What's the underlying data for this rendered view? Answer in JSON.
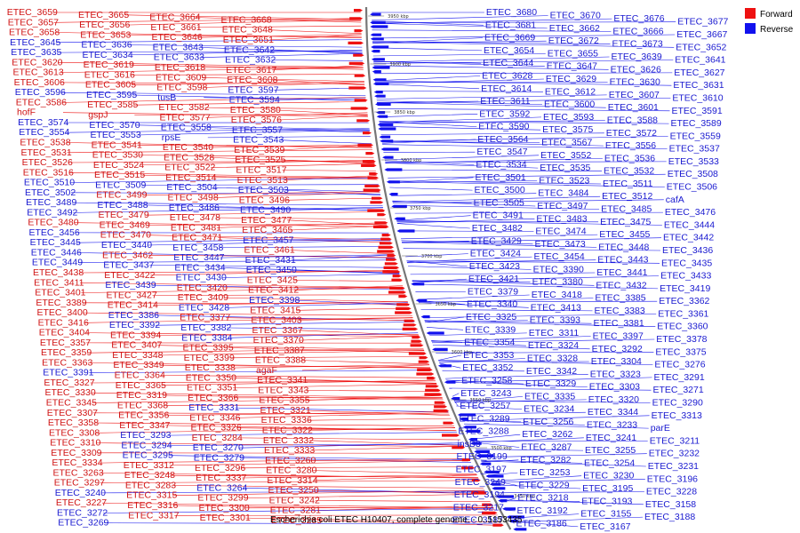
{
  "caption": "Escherichia coli ETEC H10407, complete genome. - 0..5153435",
  "legend": {
    "placement": "top-right",
    "items": [
      {
        "label": "Forward",
        "color": "#ee1111"
      },
      {
        "label": "Reverse",
        "color": "#1111ee"
      }
    ]
  },
  "colors": {
    "forward": "#ee1111",
    "forward_label": "#d01414",
    "reverse": "#1111ee",
    "reverse_label": "#1a1ad0",
    "backbone": "#777777"
  },
  "ticks": [
    "3950 kbp",
    "3900 kbp",
    "3850 kbp",
    "3800 kbp",
    "3750 kbp",
    "3700 kbp",
    "3650 kbp",
    "3600 kbp",
    "3550 kbp",
    "3500 kbp",
    "3450 kbp"
  ],
  "left_labels": [
    {
      "t": "ETEC_3659",
      "s": "f"
    },
    {
      "t": "ETEC_3665",
      "s": "f"
    },
    {
      "t": "ETEC_3664",
      "s": "f"
    },
    {
      "t": "ETEC_3668",
      "s": "f"
    },
    {
      "t": "ETEC_3657",
      "s": "f"
    },
    {
      "t": "ETEC_3656",
      "s": "f"
    },
    {
      "t": "ETEC_3661",
      "s": "f"
    },
    {
      "t": "ETEC_3648",
      "s": "f"
    },
    {
      "t": "ETEC_3658",
      "s": "f"
    },
    {
      "t": "ETEC_3653",
      "s": "f"
    },
    {
      "t": "ETEC_3646",
      "s": "f"
    },
    {
      "t": "ETEC_3651",
      "s": "f"
    },
    {
      "t": "ETEC_3645",
      "s": "r"
    },
    {
      "t": "ETEC_3636",
      "s": "r"
    },
    {
      "t": "ETEC_3643",
      "s": "r"
    },
    {
      "t": "ETEC_3642",
      "s": "r"
    },
    {
      "t": "ETEC_3635",
      "s": "r"
    },
    {
      "t": "ETEC_3634",
      "s": "r"
    },
    {
      "t": "ETEC_3633",
      "s": "r"
    },
    {
      "t": "ETEC_3632",
      "s": "r"
    },
    {
      "t": "ETEC_3620",
      "s": "f"
    },
    {
      "t": "ETEC_3619",
      "s": "f"
    },
    {
      "t": "ETEC_3618",
      "s": "f"
    },
    {
      "t": "ETEC_3617",
      "s": "f"
    },
    {
      "t": "ETEC_3613",
      "s": "f"
    },
    {
      "t": "ETEC_3616",
      "s": "f"
    },
    {
      "t": "ETEC_3609",
      "s": "f"
    },
    {
      "t": "ETEC_3608",
      "s": "f"
    },
    {
      "t": "ETEC_3606",
      "s": "f"
    },
    {
      "t": "ETEC_3605",
      "s": "f"
    },
    {
      "t": "ETEC_3598",
      "s": "f"
    },
    {
      "t": "ETEC_3597",
      "s": "r"
    },
    {
      "t": "ETEC_3596",
      "s": "r"
    },
    {
      "t": "ETEC_3595",
      "s": "r"
    },
    {
      "t": "tusB",
      "s": "r"
    },
    {
      "t": "ETEC_3594",
      "s": "r"
    },
    {
      "t": "ETEC_3586",
      "s": "f"
    },
    {
      "t": "ETEC_3585",
      "s": "f"
    },
    {
      "t": "ETEC_3582",
      "s": "f"
    },
    {
      "t": "ETEC_3580",
      "s": "f"
    },
    {
      "t": "hofF",
      "s": "f"
    },
    {
      "t": "gspJ",
      "s": "f"
    },
    {
      "t": "ETEC_3577",
      "s": "f"
    },
    {
      "t": "ETEC_3576",
      "s": "f"
    },
    {
      "t": "ETEC_3574",
      "s": "r"
    },
    {
      "t": "ETEC_3570",
      "s": "r"
    },
    {
      "t": "ETEC_3558",
      "s": "r"
    },
    {
      "t": "ETEC_3557",
      "s": "r"
    },
    {
      "t": "ETEC_3554",
      "s": "r"
    },
    {
      "t": "ETEC_3553",
      "s": "r"
    },
    {
      "t": "rpsE",
      "s": "r"
    },
    {
      "t": "ETEC_3543",
      "s": "r"
    },
    {
      "t": "ETEC_3538",
      "s": "f"
    },
    {
      "t": "ETEC_3541",
      "s": "f"
    },
    {
      "t": "ETEC_3540",
      "s": "f"
    },
    {
      "t": "ETEC_3539",
      "s": "f"
    },
    {
      "t": "ETEC_3531",
      "s": "f"
    },
    {
      "t": "ETEC_3530",
      "s": "f"
    },
    {
      "t": "ETEC_3528",
      "s": "f"
    },
    {
      "t": "ETEC_3525",
      "s": "f"
    },
    {
      "t": "ETEC_3526",
      "s": "f"
    },
    {
      "t": "ETEC_3524",
      "s": "f"
    },
    {
      "t": "ETEC_3522",
      "s": "f"
    },
    {
      "t": "ETEC_3517",
      "s": "f"
    },
    {
      "t": "ETEC_3516",
      "s": "f"
    },
    {
      "t": "ETEC_3515",
      "s": "f"
    },
    {
      "t": "ETEC_3514",
      "s": "f"
    },
    {
      "t": "ETEC_3513",
      "s": "f"
    },
    {
      "t": "ETEC_3510",
      "s": "r"
    },
    {
      "t": "ETEC_3509",
      "s": "r"
    },
    {
      "t": "ETEC_3504",
      "s": "r"
    },
    {
      "t": "ETEC_3503",
      "s": "r"
    },
    {
      "t": "ETEC_3502",
      "s": "r"
    },
    {
      "t": "ETEC_3499",
      "s": "f"
    },
    {
      "t": "ETEC_3498",
      "s": "f"
    },
    {
      "t": "ETEC_3496",
      "s": "f"
    },
    {
      "t": "ETEC_3489",
      "s": "r"
    },
    {
      "t": "ETEC_3488",
      "s": "r"
    },
    {
      "t": "ETEC_3486",
      "s": "r"
    },
    {
      "t": "ETEC_3490",
      "s": "r"
    },
    {
      "t": "ETEC_3492",
      "s": "r"
    },
    {
      "t": "ETEC_3479",
      "s": "f"
    },
    {
      "t": "ETEC_3478",
      "s": "f"
    },
    {
      "t": "ETEC_3477",
      "s": "f"
    },
    {
      "t": "ETEC_3480",
      "s": "f"
    },
    {
      "t": "ETEC_3469",
      "s": "f"
    },
    {
      "t": "ETEC_3481",
      "s": "f"
    },
    {
      "t": "ETEC_3465",
      "s": "f"
    },
    {
      "t": "ETEC_3456",
      "s": "r"
    },
    {
      "t": "ETEC_3470",
      "s": "f"
    },
    {
      "t": "ETEC_3471",
      "s": "f"
    },
    {
      "t": "ETEC_3457",
      "s": "r"
    },
    {
      "t": "ETEC_3445",
      "s": "r"
    },
    {
      "t": "ETEC_3440",
      "s": "r"
    },
    {
      "t": "ETEC_3458",
      "s": "r"
    },
    {
      "t": "ETEC_3461",
      "s": "f"
    },
    {
      "t": "ETEC_3446",
      "s": "r"
    },
    {
      "t": "ETEC_3462",
      "s": "f"
    },
    {
      "t": "ETEC_3447",
      "s": "r"
    },
    {
      "t": "ETEC_3431",
      "s": "r"
    },
    {
      "t": "ETEC_3449",
      "s": "r"
    },
    {
      "t": "ETEC_3437",
      "s": "r"
    },
    {
      "t": "ETEC_3434",
      "s": "r"
    },
    {
      "t": "ETEC_3450",
      "s": "r"
    },
    {
      "t": "ETEC_3438",
      "s": "f"
    },
    {
      "t": "ETEC_3422",
      "s": "f"
    },
    {
      "t": "ETEC_3430",
      "s": "r"
    },
    {
      "t": "ETEC_3425",
      "s": "f"
    },
    {
      "t": "ETEC_3411",
      "s": "f"
    },
    {
      "t": "ETEC_3439",
      "s": "r"
    },
    {
      "t": "ETEC_3420",
      "s": "f"
    },
    {
      "t": "ETEC_3412",
      "s": "f"
    },
    {
      "t": "ETEC_3401",
      "s": "f"
    },
    {
      "t": "ETEC_3427",
      "s": "f"
    },
    {
      "t": "ETEC_3409",
      "s": "f"
    },
    {
      "t": "ETEC_3398",
      "s": "r"
    },
    {
      "t": "ETEC_3389",
      "s": "f"
    },
    {
      "t": "ETEC_3414",
      "s": "f"
    },
    {
      "t": "ETEC_3428",
      "s": "r"
    },
    {
      "t": "ETEC_3415",
      "s": "f"
    },
    {
      "t": "ETEC_3400",
      "s": "f"
    },
    {
      "t": "ETEC_3386",
      "s": "r"
    },
    {
      "t": "ETEC_3377",
      "s": "f"
    },
    {
      "t": "ETEC_3403",
      "s": "f"
    },
    {
      "t": "ETEC_3416",
      "s": "f"
    },
    {
      "t": "ETEC_3392",
      "s": "r"
    },
    {
      "t": "ETEC_3382",
      "s": "r"
    },
    {
      "t": "ETEC_3367",
      "s": "f"
    },
    {
      "t": "ETEC_3404",
      "s": "f"
    },
    {
      "t": "ETEC_3394",
      "s": "f"
    },
    {
      "t": "ETEC_3384",
      "s": "r"
    },
    {
      "t": "ETEC_3370",
      "s": "f"
    },
    {
      "t": "ETEC_3357",
      "s": "f"
    },
    {
      "t": "ETEC_3407",
      "s": "f"
    },
    {
      "t": "ETEC_3395",
      "s": "f"
    },
    {
      "t": "ETEC_3387",
      "s": "f"
    },
    {
      "t": "ETEC_3359",
      "s": "f"
    },
    {
      "t": "ETEC_3348",
      "s": "f"
    },
    {
      "t": "ETEC_3399",
      "s": "f"
    },
    {
      "t": "ETEC_3388",
      "s": "f"
    },
    {
      "t": "ETEC_3363",
      "s": "f"
    },
    {
      "t": "ETEC_3349",
      "s": "f"
    },
    {
      "t": "ETEC_3338",
      "s": "f"
    },
    {
      "t": "agaF",
      "s": "f"
    },
    {
      "t": "ETEC_3391",
      "s": "r"
    },
    {
      "t": "ETEC_3364",
      "s": "f"
    },
    {
      "t": "ETEC_3350",
      "s": "f"
    },
    {
      "t": "ETEC_3341",
      "s": "f"
    },
    {
      "t": "ETEC_3327",
      "s": "f"
    },
    {
      "t": "ETEC_3365",
      "s": "f"
    },
    {
      "t": "ETEC_3351",
      "s": "f"
    },
    {
      "t": "ETEC_3343",
      "s": "f"
    },
    {
      "t": "ETEC_3330",
      "s": "f"
    },
    {
      "t": "ETEC_3319",
      "s": "f"
    },
    {
      "t": "ETEC_3366",
      "s": "f"
    },
    {
      "t": "ETEC_3355",
      "s": "f"
    },
    {
      "t": "ETEC_3345",
      "s": "f"
    },
    {
      "t": "ETEC_3368",
      "s": "f"
    },
    {
      "t": "ETEC_3331",
      "s": "r"
    },
    {
      "t": "ETEC_3321",
      "s": "f"
    },
    {
      "t": "ETEC_3307",
      "s": "f"
    },
    {
      "t": "ETEC_3356",
      "s": "f"
    },
    {
      "t": "ETEC_3346",
      "s": "f"
    },
    {
      "t": "ETEC_3336",
      "s": "f"
    },
    {
      "t": "ETEC_3358",
      "s": "f"
    },
    {
      "t": "ETEC_3347",
      "s": "f"
    },
    {
      "t": "ETEC_3326",
      "s": "f"
    },
    {
      "t": "ETEC_3322",
      "s": "f"
    },
    {
      "t": "ETEC_3308",
      "s": "f"
    },
    {
      "t": "ETEC_3293",
      "s": "r"
    },
    {
      "t": "ETEC_3284",
      "s": "f"
    },
    {
      "t": "ETEC_3332",
      "s": "f"
    },
    {
      "t": "ETEC_3310",
      "s": "f"
    },
    {
      "t": "ETEC_3294",
      "s": "r"
    },
    {
      "t": "ETEC_3270",
      "s": "r"
    },
    {
      "t": "ETEC_3333",
      "s": "f"
    },
    {
      "t": "ETEC_3309",
      "s": "f"
    },
    {
      "t": "ETEC_3295",
      "s": "r"
    },
    {
      "t": "ETEC_3279",
      "s": "r"
    },
    {
      "t": "ETEC_3260",
      "s": "f"
    },
    {
      "t": "ETEC_3334",
      "s": "f"
    },
    {
      "t": "ETEC_3312",
      "s": "f"
    },
    {
      "t": "ETEC_3296",
      "s": "f"
    },
    {
      "t": "ETEC_3280",
      "s": "f"
    },
    {
      "t": "ETEC_3263",
      "s": "f"
    },
    {
      "t": "ETEC_3248",
      "s": "f"
    },
    {
      "t": "ETEC_3337",
      "s": "f"
    },
    {
      "t": "ETEC_3314",
      "s": "f"
    },
    {
      "t": "ETEC_3297",
      "s": "f"
    },
    {
      "t": "ETEC_3283",
      "s": "f"
    },
    {
      "t": "ETEC_3264",
      "s": "r"
    },
    {
      "t": "ETEC_3250",
      "s": "f"
    },
    {
      "t": "ETEC_3240",
      "s": "r"
    },
    {
      "t": "ETEC_3315",
      "s": "f"
    },
    {
      "t": "ETEC_3299",
      "s": "f"
    },
    {
      "t": "ETEC_3242",
      "s": "f"
    },
    {
      "t": "ETEC_3227",
      "s": "f"
    },
    {
      "t": "ETEC_3316",
      "s": "f"
    },
    {
      "t": "ETEC_3300",
      "s": "f"
    },
    {
      "t": "ETEC_3281",
      "s": "f"
    },
    {
      "t": "ETEC_3272",
      "s": "r"
    },
    {
      "t": "ETEC_3317",
      "s": "f"
    },
    {
      "t": "ETEC_3301",
      "s": "f"
    },
    {
      "t": "ETEC_3285",
      "s": "f"
    },
    {
      "t": "ETEC_3269",
      "s": "r"
    }
  ],
  "right_labels": [
    {
      "t": "ETEC_3680",
      "s": "r"
    },
    {
      "t": "ETEC_3670",
      "s": "r"
    },
    {
      "t": "ETEC_3676",
      "s": "r"
    },
    {
      "t": "ETEC_3677",
      "s": "r"
    },
    {
      "t": "ETEC_3681",
      "s": "r"
    },
    {
      "t": "ETEC_3662",
      "s": "r"
    },
    {
      "t": "ETEC_3666",
      "s": "r"
    },
    {
      "t": "ETEC_3667",
      "s": "r"
    },
    {
      "t": "ETEC_3669",
      "s": "r"
    },
    {
      "t": "ETEC_3672",
      "s": "r"
    },
    {
      "t": "ETEC_3673",
      "s": "r"
    },
    {
      "t": "ETEC_3652",
      "s": "r"
    },
    {
      "t": "ETEC_3654",
      "s": "r"
    },
    {
      "t": "ETEC_3655",
      "s": "r"
    },
    {
      "t": "ETEC_3639",
      "s": "r"
    },
    {
      "t": "ETEC_3641",
      "s": "r"
    },
    {
      "t": "ETEC_3644",
      "s": "r"
    },
    {
      "t": "ETEC_3647",
      "s": "r"
    },
    {
      "t": "ETEC_3626",
      "s": "r"
    },
    {
      "t": "ETEC_3627",
      "s": "r"
    },
    {
      "t": "ETEC_3628",
      "s": "r"
    },
    {
      "t": "ETEC_3629",
      "s": "r"
    },
    {
      "t": "ETEC_3630",
      "s": "r"
    },
    {
      "t": "ETEC_3631",
      "s": "r"
    },
    {
      "t": "ETEC_3614",
      "s": "r"
    },
    {
      "t": "ETEC_3612",
      "s": "r"
    },
    {
      "t": "ETEC_3607",
      "s": "r"
    },
    {
      "t": "ETEC_3610",
      "s": "r"
    },
    {
      "t": "ETEC_3611",
      "s": "r"
    },
    {
      "t": "ETEC_3600",
      "s": "r"
    },
    {
      "t": "ETEC_3601",
      "s": "r"
    },
    {
      "t": "ETEC_3591",
      "s": "r"
    },
    {
      "t": "ETEC_3592",
      "s": "r"
    },
    {
      "t": "ETEC_3593",
      "s": "r"
    },
    {
      "t": "ETEC_3588",
      "s": "r"
    },
    {
      "t": "ETEC_3589",
      "s": "r"
    },
    {
      "t": "ETEC_3590",
      "s": "r"
    },
    {
      "t": "ETEC_3575",
      "s": "r"
    },
    {
      "t": "ETEC_3572",
      "s": "r"
    },
    {
      "t": "ETEC_3559",
      "s": "r"
    },
    {
      "t": "ETEC_3564",
      "s": "r"
    },
    {
      "t": "ETEC_3567",
      "s": "r"
    },
    {
      "t": "ETEC_3556",
      "s": "r"
    },
    {
      "t": "ETEC_3537",
      "s": "r"
    },
    {
      "t": "ETEC_3547",
      "s": "r"
    },
    {
      "t": "ETEC_3552",
      "s": "r"
    },
    {
      "t": "ETEC_3536",
      "s": "r"
    },
    {
      "t": "ETEC_3533",
      "s": "r"
    },
    {
      "t": "ETEC_3534",
      "s": "r"
    },
    {
      "t": "ETEC_3535",
      "s": "r"
    },
    {
      "t": "ETEC_3532",
      "s": "r"
    },
    {
      "t": "ETEC_3508",
      "s": "r"
    },
    {
      "t": "ETEC_3501",
      "s": "r"
    },
    {
      "t": "ETEC_3523",
      "s": "r"
    },
    {
      "t": "ETEC_3511",
      "s": "r"
    },
    {
      "t": "ETEC_3506",
      "s": "r"
    },
    {
      "t": "ETEC_3500",
      "s": "r"
    },
    {
      "t": "ETEC_3484",
      "s": "r"
    },
    {
      "t": "ETEC_3512",
      "s": "r"
    },
    {
      "t": "cafA",
      "s": "r"
    },
    {
      "t": "ETEC_3505",
      "s": "r"
    },
    {
      "t": "ETEC_3497",
      "s": "r"
    },
    {
      "t": "ETEC_3485",
      "s": "r"
    },
    {
      "t": "ETEC_3476",
      "s": "r"
    },
    {
      "t": "ETEC_3491",
      "s": "r"
    },
    {
      "t": "ETEC_3483",
      "s": "r"
    },
    {
      "t": "ETEC_3475",
      "s": "r"
    },
    {
      "t": "ETEC_3444",
      "s": "r"
    },
    {
      "t": "ETEC_3482",
      "s": "r"
    },
    {
      "t": "ETEC_3474",
      "s": "r"
    },
    {
      "t": "ETEC_3455",
      "s": "r"
    },
    {
      "t": "ETEC_3442",
      "s": "r"
    },
    {
      "t": "ETEC_3429",
      "s": "r"
    },
    {
      "t": "ETEC_3473",
      "s": "r"
    },
    {
      "t": "ETEC_3448",
      "s": "r"
    },
    {
      "t": "ETEC_3436",
      "s": "r"
    },
    {
      "t": "ETEC_3424",
      "s": "r"
    },
    {
      "t": "ETEC_3454",
      "s": "r"
    },
    {
      "t": "ETEC_3443",
      "s": "r"
    },
    {
      "t": "ETEC_3435",
      "s": "r"
    },
    {
      "t": "ETEC_3423",
      "s": "r"
    },
    {
      "t": "ETEC_3390",
      "s": "r"
    },
    {
      "t": "ETEC_3441",
      "s": "r"
    },
    {
      "t": "ETEC_3433",
      "s": "r"
    },
    {
      "t": "ETEC_3421",
      "s": "r"
    },
    {
      "t": "ETEC_3380",
      "s": "r"
    },
    {
      "t": "ETEC_3432",
      "s": "r"
    },
    {
      "t": "ETEC_3419",
      "s": "r"
    },
    {
      "t": "ETEC_3379",
      "s": "r"
    },
    {
      "t": "ETEC_3418",
      "s": "r"
    },
    {
      "t": "ETEC_3385",
      "s": "r"
    },
    {
      "t": "ETEC_3362",
      "s": "r"
    },
    {
      "t": "ETEC_3340",
      "s": "r"
    },
    {
      "t": "ETEC_3413",
      "s": "r"
    },
    {
      "t": "ETEC_3383",
      "s": "r"
    },
    {
      "t": "ETEC_3361",
      "s": "r"
    },
    {
      "t": "ETEC_3325",
      "s": "r"
    },
    {
      "t": "ETEC_3393",
      "s": "r"
    },
    {
      "t": "ETEC_3381",
      "s": "r"
    },
    {
      "t": "ETEC_3360",
      "s": "r"
    },
    {
      "t": "ETEC_3339",
      "s": "r"
    },
    {
      "t": "ETEC_3311",
      "s": "r"
    },
    {
      "t": "ETEC_3397",
      "s": "r"
    },
    {
      "t": "ETEC_3378",
      "s": "r"
    },
    {
      "t": "ETEC_3354",
      "s": "r"
    },
    {
      "t": "ETEC_3324",
      "s": "r"
    },
    {
      "t": "ETEC_3292",
      "s": "r"
    },
    {
      "t": "ETEC_3375",
      "s": "r"
    },
    {
      "t": "ETEC_3353",
      "s": "r"
    },
    {
      "t": "ETEC_3328",
      "s": "r"
    },
    {
      "t": "ETEC_3304",
      "s": "r"
    },
    {
      "t": "ETEC_3276",
      "s": "r"
    },
    {
      "t": "ETEC_3352",
      "s": "r"
    },
    {
      "t": "ETEC_3342",
      "s": "r"
    },
    {
      "t": "ETEC_3323",
      "s": "r"
    },
    {
      "t": "ETEC_3291",
      "s": "r"
    },
    {
      "t": "ETEC_3258",
      "s": "r"
    },
    {
      "t": "ETEC_3329",
      "s": "r"
    },
    {
      "t": "ETEC_3303",
      "s": "r"
    },
    {
      "t": "ETEC_3271",
      "s": "r"
    },
    {
      "t": "ETEC_3243",
      "s": "r"
    },
    {
      "t": "ETEC_3335",
      "s": "r"
    },
    {
      "t": "ETEC_3320",
      "s": "r"
    },
    {
      "t": "ETEC_3290",
      "s": "r"
    },
    {
      "t": "ETEC_3257",
      "s": "r"
    },
    {
      "t": "ETEC_3234",
      "s": "r"
    },
    {
      "t": "ETEC_3344",
      "s": "r"
    },
    {
      "t": "ETEC_3313",
      "s": "r"
    },
    {
      "t": "ETEC_3289",
      "s": "r"
    },
    {
      "t": "ETEC_3256",
      "s": "r"
    },
    {
      "t": "ETEC_3233",
      "s": "r"
    },
    {
      "t": "parE",
      "s": "r"
    },
    {
      "t": "ETEC_3288",
      "s": "r"
    },
    {
      "t": "ETEC_3262",
      "s": "r"
    },
    {
      "t": "ETEC_3241",
      "s": "r"
    },
    {
      "t": "ETEC_3211",
      "s": "r"
    },
    {
      "t": "insB3",
      "s": "r"
    },
    {
      "t": "ETEC_3287",
      "s": "r"
    },
    {
      "t": "ETEC_3255",
      "s": "r"
    },
    {
      "t": "ETEC_3232",
      "s": "r"
    },
    {
      "t": "ETEC_3199",
      "s": "r"
    },
    {
      "t": "ETEC_3282",
      "s": "r"
    },
    {
      "t": "ETEC_3254",
      "s": "r"
    },
    {
      "t": "ETEC_3231",
      "s": "r"
    },
    {
      "t": "ETEC_3197",
      "s": "r"
    },
    {
      "t": "ETEC_3253",
      "s": "r"
    },
    {
      "t": "ETEC_3230",
      "s": "r"
    },
    {
      "t": "ETEC_3196",
      "s": "r"
    },
    {
      "t": "ETEC_3249",
      "s": "r"
    },
    {
      "t": "ETEC_3229",
      "s": "r"
    },
    {
      "t": "ETEC_3195",
      "s": "r"
    },
    {
      "t": "ETEC_3228",
      "s": "r"
    },
    {
      "t": "ETEC_3194",
      "s": "r"
    },
    {
      "t": "ETEC_3218",
      "s": "r"
    },
    {
      "t": "ETEC_3193",
      "s": "r"
    },
    {
      "t": "ETEC_3158",
      "s": "r"
    },
    {
      "t": "ETEC_3217",
      "s": "r"
    },
    {
      "t": "ETEC_3192",
      "s": "r"
    },
    {
      "t": "ETEC_3155",
      "s": "r"
    },
    {
      "t": "ETEC_3188",
      "s": "r"
    },
    {
      "t": "ETEC_3187",
      "s": "r"
    },
    {
      "t": "ETEC_3186",
      "s": "r"
    },
    {
      "t": "ETEC_3167",
      "s": "r"
    }
  ]
}
